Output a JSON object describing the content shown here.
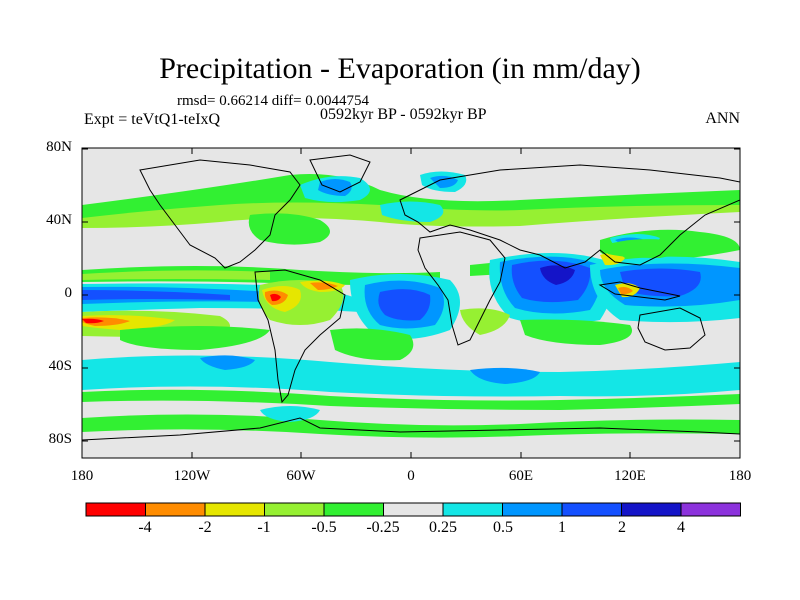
{
  "title": "Precipitation - Evaporation (in mm/day)",
  "stats_line": "rmsd= 0.66214 diff= 0.0044754",
  "experiment_label": "Expt = teVtQ1-teIxQ",
  "period_label": "0592kyr BP - 0592kyr BP",
  "season_label": "ANN",
  "latitude_labels": [
    "80N",
    "40N",
    "0",
    "40S",
    "80S"
  ],
  "longitude_labels": [
    "180",
    "120W",
    "60W",
    "0",
    "60E",
    "120E",
    "180"
  ],
  "colorbar": {
    "labels": [
      "-4",
      "-2",
      "-1",
      "-0.5",
      "-0.25",
      "0.25",
      "0.5",
      "1",
      "2",
      "4"
    ],
    "colors": [
      "#ff0000",
      "#ff8c00",
      "#e6e600",
      "#96f032",
      "#32f032",
      "#e6e6e6",
      "#14e6e6",
      "#0096ff",
      "#1450ff",
      "#1414c8",
      "#8c32dc"
    ]
  },
  "map_background_color": "#e6e6e6"
}
